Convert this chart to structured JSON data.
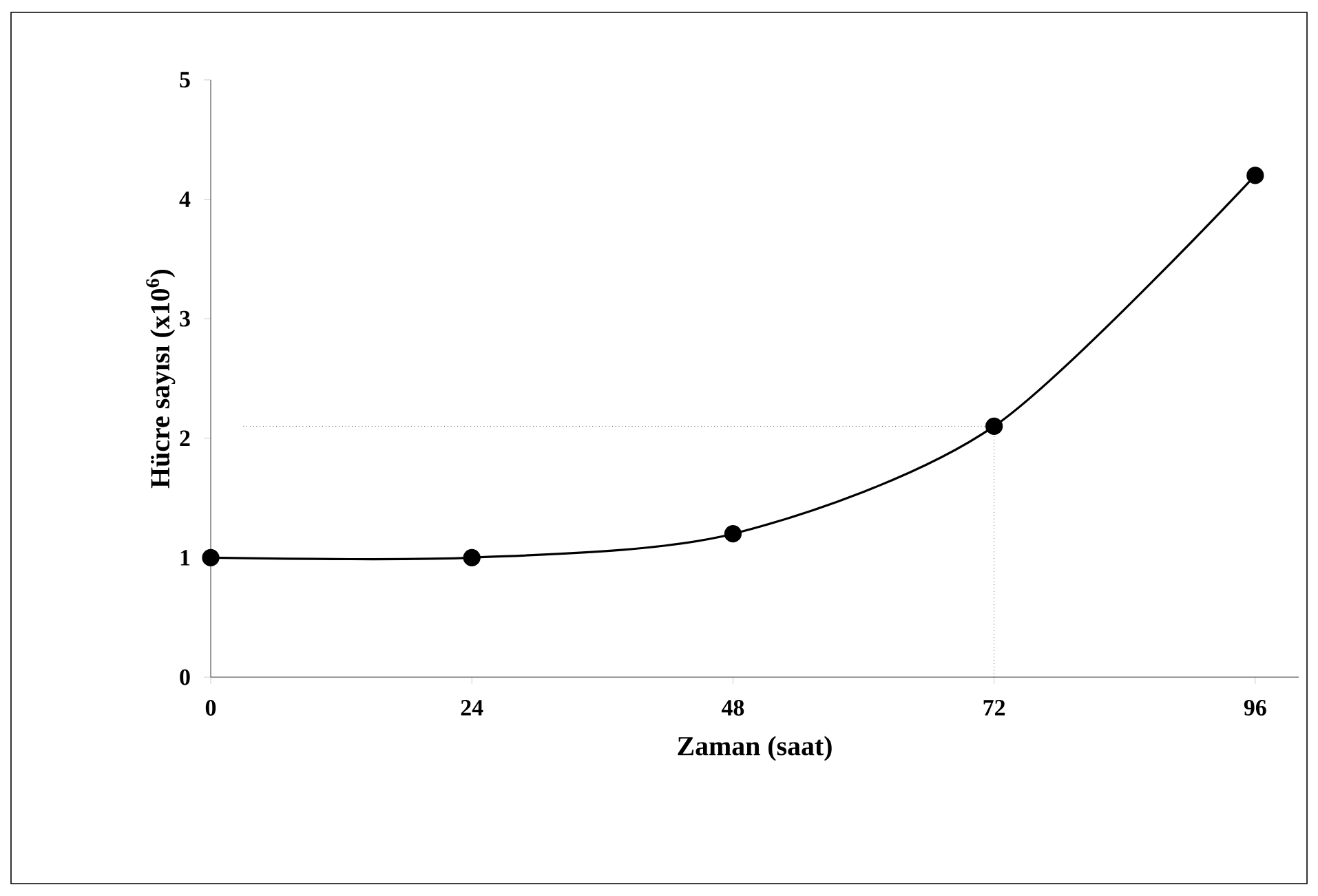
{
  "chart_data": {
    "type": "line",
    "xlabel": "Zaman (saat)",
    "ylabel": "Hücre sayısı (x10$^{6}$)",
    "x": [
      0,
      24,
      48,
      72,
      96
    ],
    "series": [
      {
        "color": "#000000",
        "values": [
          1.0,
          1.0,
          1.2,
          2.1,
          4.2
        ]
      }
    ],
    "xlim": [
      0,
      100
    ],
    "ylim": [
      0,
      5
    ],
    "xticks": [
      0,
      24,
      48,
      72,
      96
    ],
    "yticks": [
      0,
      1,
      2,
      3,
      4,
      5
    ],
    "marker": "circle",
    "line_style": "solid",
    "ref_lines": [
      {
        "axis": "y",
        "value": 2.1,
        "line_style": "dotted",
        "color": "#000000"
      },
      {
        "axis": "x",
        "value": 72,
        "line_style": "dotted",
        "color": "#000000"
      }
    ]
  }
}
